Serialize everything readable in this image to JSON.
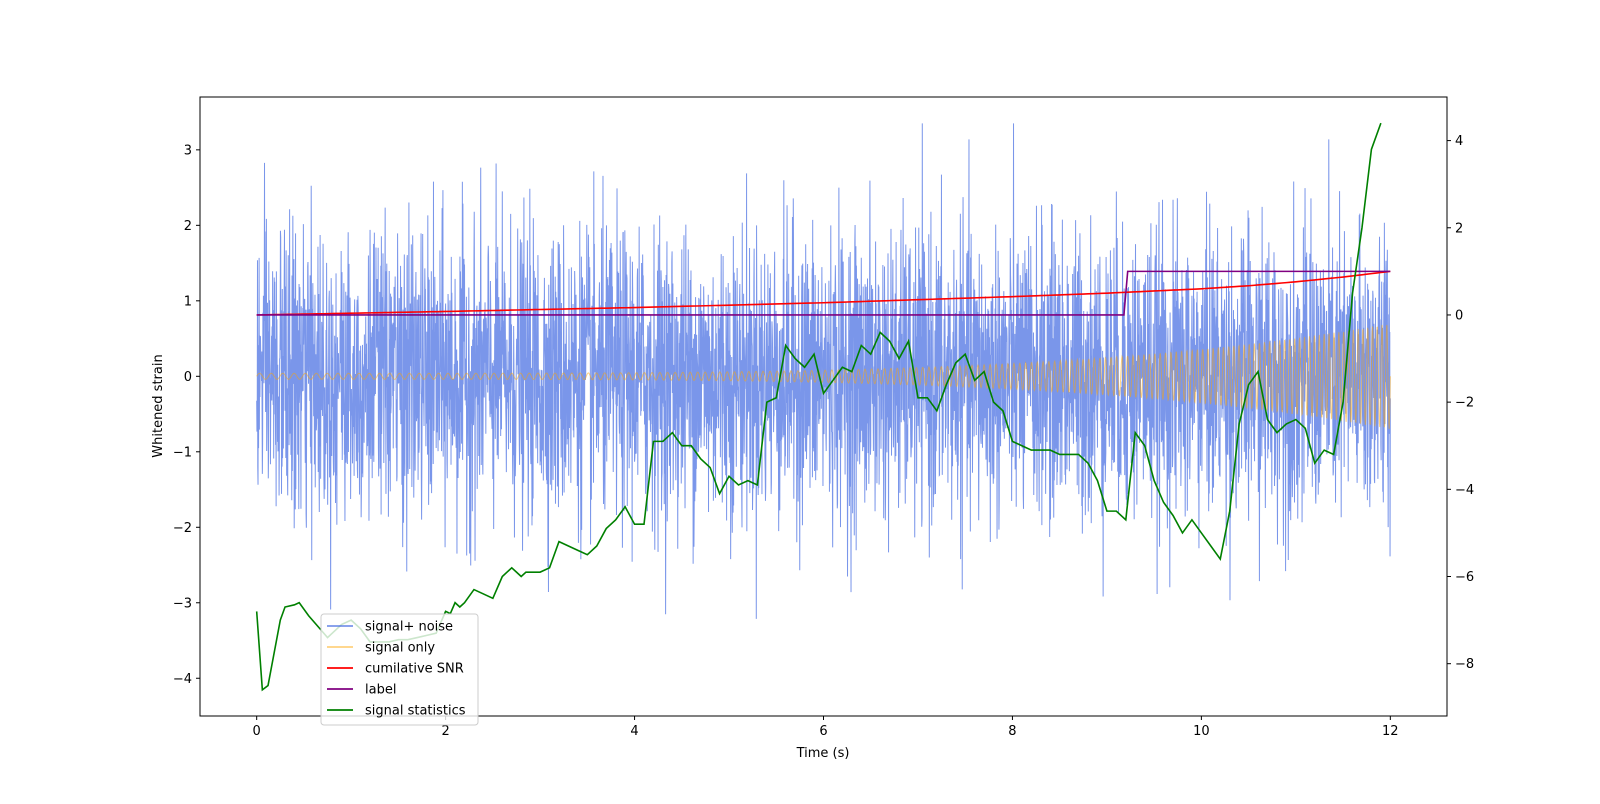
{
  "chart_data": {
    "type": "line",
    "title": "",
    "xlabel": "Time (s)",
    "ylabel": "Whitened strain",
    "ylabel_right": "",
    "xlim": [
      -0.6,
      12.6
    ],
    "ylim": [
      -4.5,
      3.7
    ],
    "ylim_right": [
      -9.2,
      5.0
    ],
    "xticks": [
      0,
      2,
      4,
      6,
      8,
      10,
      12
    ],
    "xtick_labels": [
      "0",
      "2",
      "4",
      "6",
      "8",
      "10",
      "12"
    ],
    "yticks": [
      -4,
      -3,
      -2,
      -1,
      0,
      1,
      2,
      3
    ],
    "ytick_labels": [
      "−4",
      "−3",
      "−2",
      "−1",
      "0",
      "1",
      "2",
      "3"
    ],
    "yticks_right": [
      -8,
      -6,
      -4,
      -2,
      0,
      2,
      4
    ],
    "ytick_labels_right": [
      "−8",
      "−6",
      "−4",
      "−2",
      "0",
      "2",
      "4"
    ],
    "legend_position": "lower-left",
    "series": [
      {
        "name": "signal+ noise",
        "color": "#4169e1",
        "axis": "left",
        "style": "noise",
        "x_range": [
          0,
          12
        ],
        "noise_sigma": 1.0,
        "peak_max": 3.35,
        "peak_min": -4.15
      },
      {
        "name": "signal only",
        "color": "#ffa500",
        "axis": "left",
        "style": "chirp",
        "x_range": [
          0,
          12
        ],
        "amplitude_start": 0.04,
        "amplitude_end": 0.7
      },
      {
        "name": "cumilative SNR",
        "color": "#ff0000",
        "axis": "right",
        "x": [
          0,
          2,
          4,
          6,
          8,
          9,
          10,
          10.5,
          11,
          11.5,
          12
        ],
        "y": [
          0.0,
          0.08,
          0.17,
          0.28,
          0.42,
          0.5,
          0.6,
          0.67,
          0.76,
          0.87,
          1.0
        ]
      },
      {
        "name": "label",
        "color": "#800080",
        "axis": "right",
        "x": [
          0,
          9.18,
          9.22,
          12
        ],
        "y": [
          0,
          0,
          1,
          1
        ]
      },
      {
        "name": "signal statistics",
        "color": "#008000",
        "axis": "right",
        "x": [
          0,
          0.06,
          0.12,
          0.25,
          0.3,
          0.4,
          0.45,
          0.55,
          0.65,
          0.75,
          0.8,
          0.9,
          1.0,
          1.1,
          1.2,
          1.3,
          1.4,
          1.5,
          1.6,
          1.7,
          1.8,
          1.9,
          2.0,
          2.05,
          2.1,
          2.15,
          2.2,
          2.3,
          2.4,
          2.5,
          2.6,
          2.7,
          2.75,
          2.8,
          2.85,
          2.9,
          3.0,
          3.1,
          3.2,
          3.3,
          3.4,
          3.5,
          3.6,
          3.7,
          3.8,
          3.9,
          4.0,
          4.1,
          4.2,
          4.3,
          4.4,
          4.5,
          4.6,
          4.7,
          4.8,
          4.9,
          5.0,
          5.1,
          5.2,
          5.3,
          5.4,
          5.5,
          5.6,
          5.7,
          5.8,
          5.9,
          6.0,
          6.1,
          6.2,
          6.3,
          6.4,
          6.5,
          6.6,
          6.7,
          6.8,
          6.9,
          7.0,
          7.1,
          7.2,
          7.3,
          7.4,
          7.5,
          7.6,
          7.7,
          7.8,
          7.9,
          8.0,
          8.1,
          8.2,
          8.3,
          8.4,
          8.5,
          8.6,
          8.7,
          8.8,
          8.9,
          9.0,
          9.1,
          9.2,
          9.3,
          9.4,
          9.5,
          9.6,
          9.7,
          9.8,
          9.9,
          10.0,
          10.1,
          10.2,
          10.3,
          10.4,
          10.5,
          10.6,
          10.7,
          10.8,
          10.9,
          11.0,
          11.1,
          11.2,
          11.3,
          11.4,
          11.5,
          11.6,
          11.7,
          11.8,
          11.9
        ],
        "y": [
          -6.8,
          -8.6,
          -8.5,
          -7.0,
          -6.7,
          -6.65,
          -6.6,
          -6.9,
          -7.15,
          -7.4,
          -7.3,
          -7.1,
          -7.0,
          -7.2,
          -7.5,
          -7.5,
          -7.5,
          -7.45,
          -7.45,
          -7.4,
          -7.35,
          -7.3,
          -6.8,
          -6.85,
          -6.6,
          -6.7,
          -6.6,
          -6.3,
          -6.4,
          -6.5,
          -6.0,
          -5.8,
          -5.9,
          -6.0,
          -5.9,
          -5.9,
          -5.9,
          -5.8,
          -5.2,
          -5.3,
          -5.4,
          -5.5,
          -5.3,
          -4.9,
          -4.7,
          -4.4,
          -4.8,
          -4.8,
          -2.9,
          -2.9,
          -2.7,
          -3.0,
          -3.0,
          -3.3,
          -3.5,
          -4.1,
          -3.7,
          -3.9,
          -3.8,
          -3.9,
          -2.0,
          -1.9,
          -0.7,
          -1.0,
          -1.2,
          -0.9,
          -1.8,
          -1.5,
          -1.2,
          -1.3,
          -0.7,
          -0.9,
          -0.4,
          -0.6,
          -1.0,
          -0.6,
          -1.9,
          -1.9,
          -2.2,
          -1.6,
          -1.1,
          -0.9,
          -1.5,
          -1.3,
          -2.0,
          -2.2,
          -2.9,
          -3.0,
          -3.1,
          -3.1,
          -3.1,
          -3.2,
          -3.2,
          -3.2,
          -3.4,
          -3.8,
          -4.5,
          -4.5,
          -4.7,
          -2.7,
          -3.0,
          -3.8,
          -4.3,
          -4.6,
          -5.0,
          -4.7,
          -5.0,
          -5.3,
          -5.6,
          -4.5,
          -2.5,
          -1.6,
          -1.3,
          -2.4,
          -2.7,
          -2.5,
          -2.4,
          -2.6,
          -3.4,
          -3.1,
          -3.2,
          -2.0,
          0.5,
          2.0,
          3.8,
          4.4
        ]
      }
    ]
  }
}
